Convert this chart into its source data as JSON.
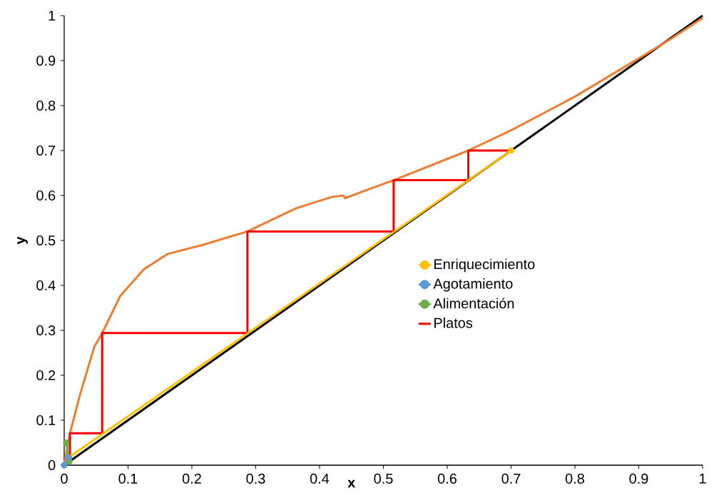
{
  "chart_data": {
    "type": "line",
    "xlabel": "x",
    "ylabel": "y",
    "xlim": [
      0,
      1
    ],
    "ylim": [
      0,
      1
    ],
    "xticks": [
      0,
      0.1,
      0.2,
      0.3,
      0.4,
      0.5,
      0.6,
      0.7,
      0.8,
      0.9,
      1
    ],
    "yticks": [
      0,
      0.1,
      0.2,
      0.3,
      0.4,
      0.5,
      0.6,
      0.7,
      0.8,
      0.9,
      1
    ],
    "legend": "right",
    "series": [
      {
        "color": "#000000",
        "x": [
          0,
          1
        ],
        "values": [
          0,
          1
        ]
      },
      {
        "color": "#ED7D31",
        "x": [
          0,
          0.009,
          0.024,
          0.047,
          0.0595,
          0.088,
          0.125,
          0.162,
          0.217,
          0.254,
          0.287,
          0.364,
          0.42,
          0.437,
          0.44,
          0.47,
          0.516,
          0.633,
          0.7,
          0.8,
          0.9,
          0.95,
          1
        ],
        "values": [
          0,
          0.071,
          0.153,
          0.263,
          0.294,
          0.377,
          0.436,
          0.47,
          0.49,
          0.506,
          0.52,
          0.572,
          0.597,
          0.6,
          0.594,
          0.61,
          0.634,
          0.7,
          0.745,
          0.82,
          0.905,
          0.948,
          0.995
        ]
      },
      {
        "name": "Enriquecimiento",
        "color": "#FFC000",
        "marker": "circle",
        "x": [
          0.007,
          0.7
        ],
        "values": [
          0.017,
          0.7
        ]
      },
      {
        "name": "Agotamiento",
        "color": "#5B9BD5",
        "marker": "circle",
        "x": [
          0,
          0.007
        ],
        "values": [
          0,
          0.017
        ]
      },
      {
        "name": "Alimentación",
        "color": "#70AD47",
        "marker": "circle",
        "x": [
          0.008,
          0.003
        ],
        "values": [
          0.008,
          0.05
        ]
      },
      {
        "name": "Platos",
        "color": "#FF0000",
        "x": [
          0.7,
          0.633,
          0.633,
          0.516,
          0.516,
          0.287,
          0.287,
          0.0595,
          0.0595,
          0.009,
          0.009,
          0.004,
          0.004
        ],
        "values": [
          0.7,
          0.7,
          0.634,
          0.634,
          0.52,
          0.52,
          0.294,
          0.294,
          0.071,
          0.071,
          0.018,
          0.018,
          0.005
        ]
      }
    ]
  }
}
